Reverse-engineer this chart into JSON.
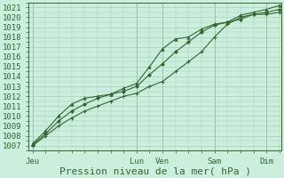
{
  "bg_color": "#cceedd",
  "grid_color": "#aaccbb",
  "line_color": "#336633",
  "xlabel": "Pression niveau de la mer( hPa )",
  "xlabel_fontsize": 8,
  "tick_fontsize": 6.5,
  "ylim": [
    1006.5,
    1021.5
  ],
  "yticks": [
    1007,
    1008,
    1009,
    1010,
    1011,
    1012,
    1013,
    1014,
    1015,
    1016,
    1017,
    1018,
    1019,
    1020,
    1021
  ],
  "day_labels": [
    "Jeu",
    "Lun",
    "Ven",
    "Sam",
    "Dim"
  ],
  "day_positions": [
    0,
    48,
    60,
    84,
    108
  ],
  "xlim": [
    -2,
    115
  ],
  "series1_x": [
    0,
    6,
    12,
    18,
    24,
    30,
    36,
    42,
    48,
    54,
    60,
    66,
    72,
    78,
    84,
    90,
    96,
    102,
    108,
    114
  ],
  "series1_y": [
    1007.0,
    1008.0,
    1009.0,
    1009.8,
    1010.5,
    1011.0,
    1011.5,
    1012.0,
    1012.3,
    1013.0,
    1013.5,
    1014.5,
    1015.5,
    1016.5,
    1018.0,
    1019.3,
    1020.0,
    1020.3,
    1020.3,
    1020.5
  ],
  "series2_x": [
    0,
    6,
    12,
    18,
    24,
    30,
    36,
    42,
    48,
    54,
    60,
    66,
    72,
    78,
    84,
    90,
    96,
    102,
    108,
    114
  ],
  "series2_y": [
    1007.1,
    1008.2,
    1009.5,
    1010.5,
    1011.2,
    1011.8,
    1012.2,
    1012.5,
    1013.0,
    1014.2,
    1015.3,
    1016.5,
    1017.5,
    1018.5,
    1019.2,
    1019.5,
    1019.8,
    1020.3,
    1020.5,
    1020.8
  ],
  "series3_x": [
    0,
    6,
    12,
    18,
    24,
    30,
    36,
    42,
    48,
    54,
    60,
    66,
    72,
    78,
    84,
    90,
    96,
    102,
    108,
    114
  ],
  "series3_y": [
    1007.2,
    1008.5,
    1010.0,
    1011.2,
    1011.8,
    1012.0,
    1012.2,
    1012.8,
    1013.3,
    1015.0,
    1016.8,
    1017.8,
    1018.0,
    1018.8,
    1019.3,
    1019.5,
    1020.2,
    1020.5,
    1020.8,
    1021.2
  ],
  "vline_positions": [
    0,
    48,
    60,
    84,
    108
  ]
}
